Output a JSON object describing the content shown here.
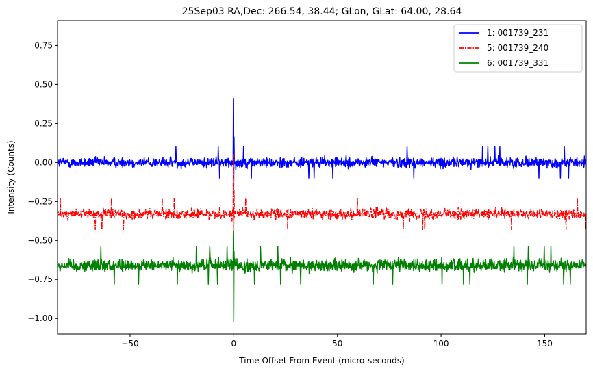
{
  "chart_data": {
    "type": "line",
    "title": "25Sep03 RA,Dec:  266.54,  38.44; GLon, GLat:   64.00,  28.64",
    "xlabel": "Time Offset From Event (micro-seconds)",
    "ylabel": "Intensity (Counts)",
    "xlim": [
      -85,
      170
    ],
    "ylim": [
      -1.1,
      0.91
    ],
    "xticks": [
      -50,
      0,
      50,
      100,
      150
    ],
    "xtick_labels": [
      "−50",
      "0",
      "50",
      "100",
      "150"
    ],
    "yticks": [
      0.75,
      0.5,
      0.25,
      0.0,
      -0.25,
      -0.5,
      -0.75,
      -1.0
    ],
    "ytick_labels": [
      "0.75",
      "0.50",
      "0.25",
      "0.00",
      "−0.25",
      "−0.50",
      "−0.75",
      "−1.00"
    ],
    "legend_position": "top-right",
    "series": [
      {
        "name": "1: 001739_231",
        "color": "#0000ff",
        "style": "solid",
        "baseline": 0.0,
        "noise_amplitude": 0.05,
        "spike_max": 0.41,
        "spike_min": -0.18,
        "spike_x": 0
      },
      {
        "name": "5: 001739_240",
        "color": "#ff0000",
        "style": "dashdot",
        "baseline": -0.33,
        "noise_amplitude": 0.05,
        "spike_max": 0.05,
        "spike_min": -0.45,
        "spike_x": 0
      },
      {
        "name": "6: 001739_331",
        "color": "#008000",
        "style": "solid",
        "baseline": -0.66,
        "noise_amplitude": 0.06,
        "spike_max": -0.44,
        "spike_min": -1.02,
        "spike_x": 0
      }
    ]
  }
}
